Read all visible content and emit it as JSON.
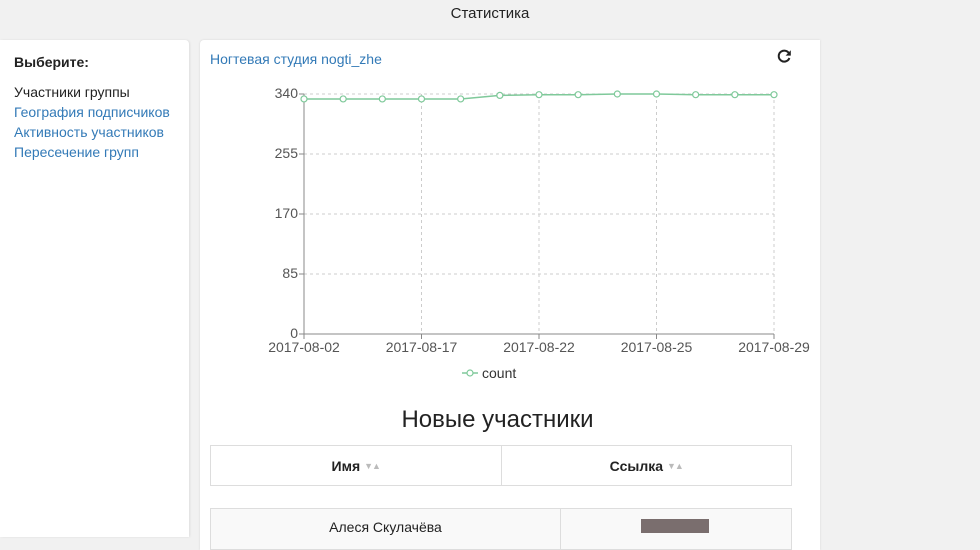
{
  "header": {
    "title": "Статистика"
  },
  "sidebar": {
    "heading": "Выберите:",
    "items": [
      {
        "label": "Участники группы",
        "active": true
      },
      {
        "label": "География подписчиков",
        "active": false
      },
      {
        "label": "Активность участников",
        "active": false
      },
      {
        "label": "Пересечение групп",
        "active": false
      }
    ]
  },
  "panel": {
    "group_link": "Ногтевая студия nogti_zhe",
    "refresh_icon": "refresh-icon",
    "legend_label": "count",
    "section_title": "Новые участники",
    "table": {
      "columns": [
        "Имя",
        "Ссылка"
      ],
      "rows": [
        {
          "name": "Алеся Скулачёва",
          "link": ""
        }
      ]
    }
  },
  "chart_data": {
    "type": "line",
    "x_tick_labels": [
      "2017-08-02",
      "2017-08-17",
      "2017-08-22",
      "2017-08-25",
      "2017-08-29"
    ],
    "y_ticks": [
      0,
      85,
      170,
      255,
      340
    ],
    "ylim": [
      0,
      340
    ],
    "grid": true,
    "legend": "bottom",
    "color": "#7fc99a",
    "series": [
      {
        "name": "count",
        "values": [
          333,
          333,
          333,
          333,
          333,
          338,
          339,
          339,
          340,
          340,
          339,
          339,
          339
        ]
      }
    ]
  }
}
